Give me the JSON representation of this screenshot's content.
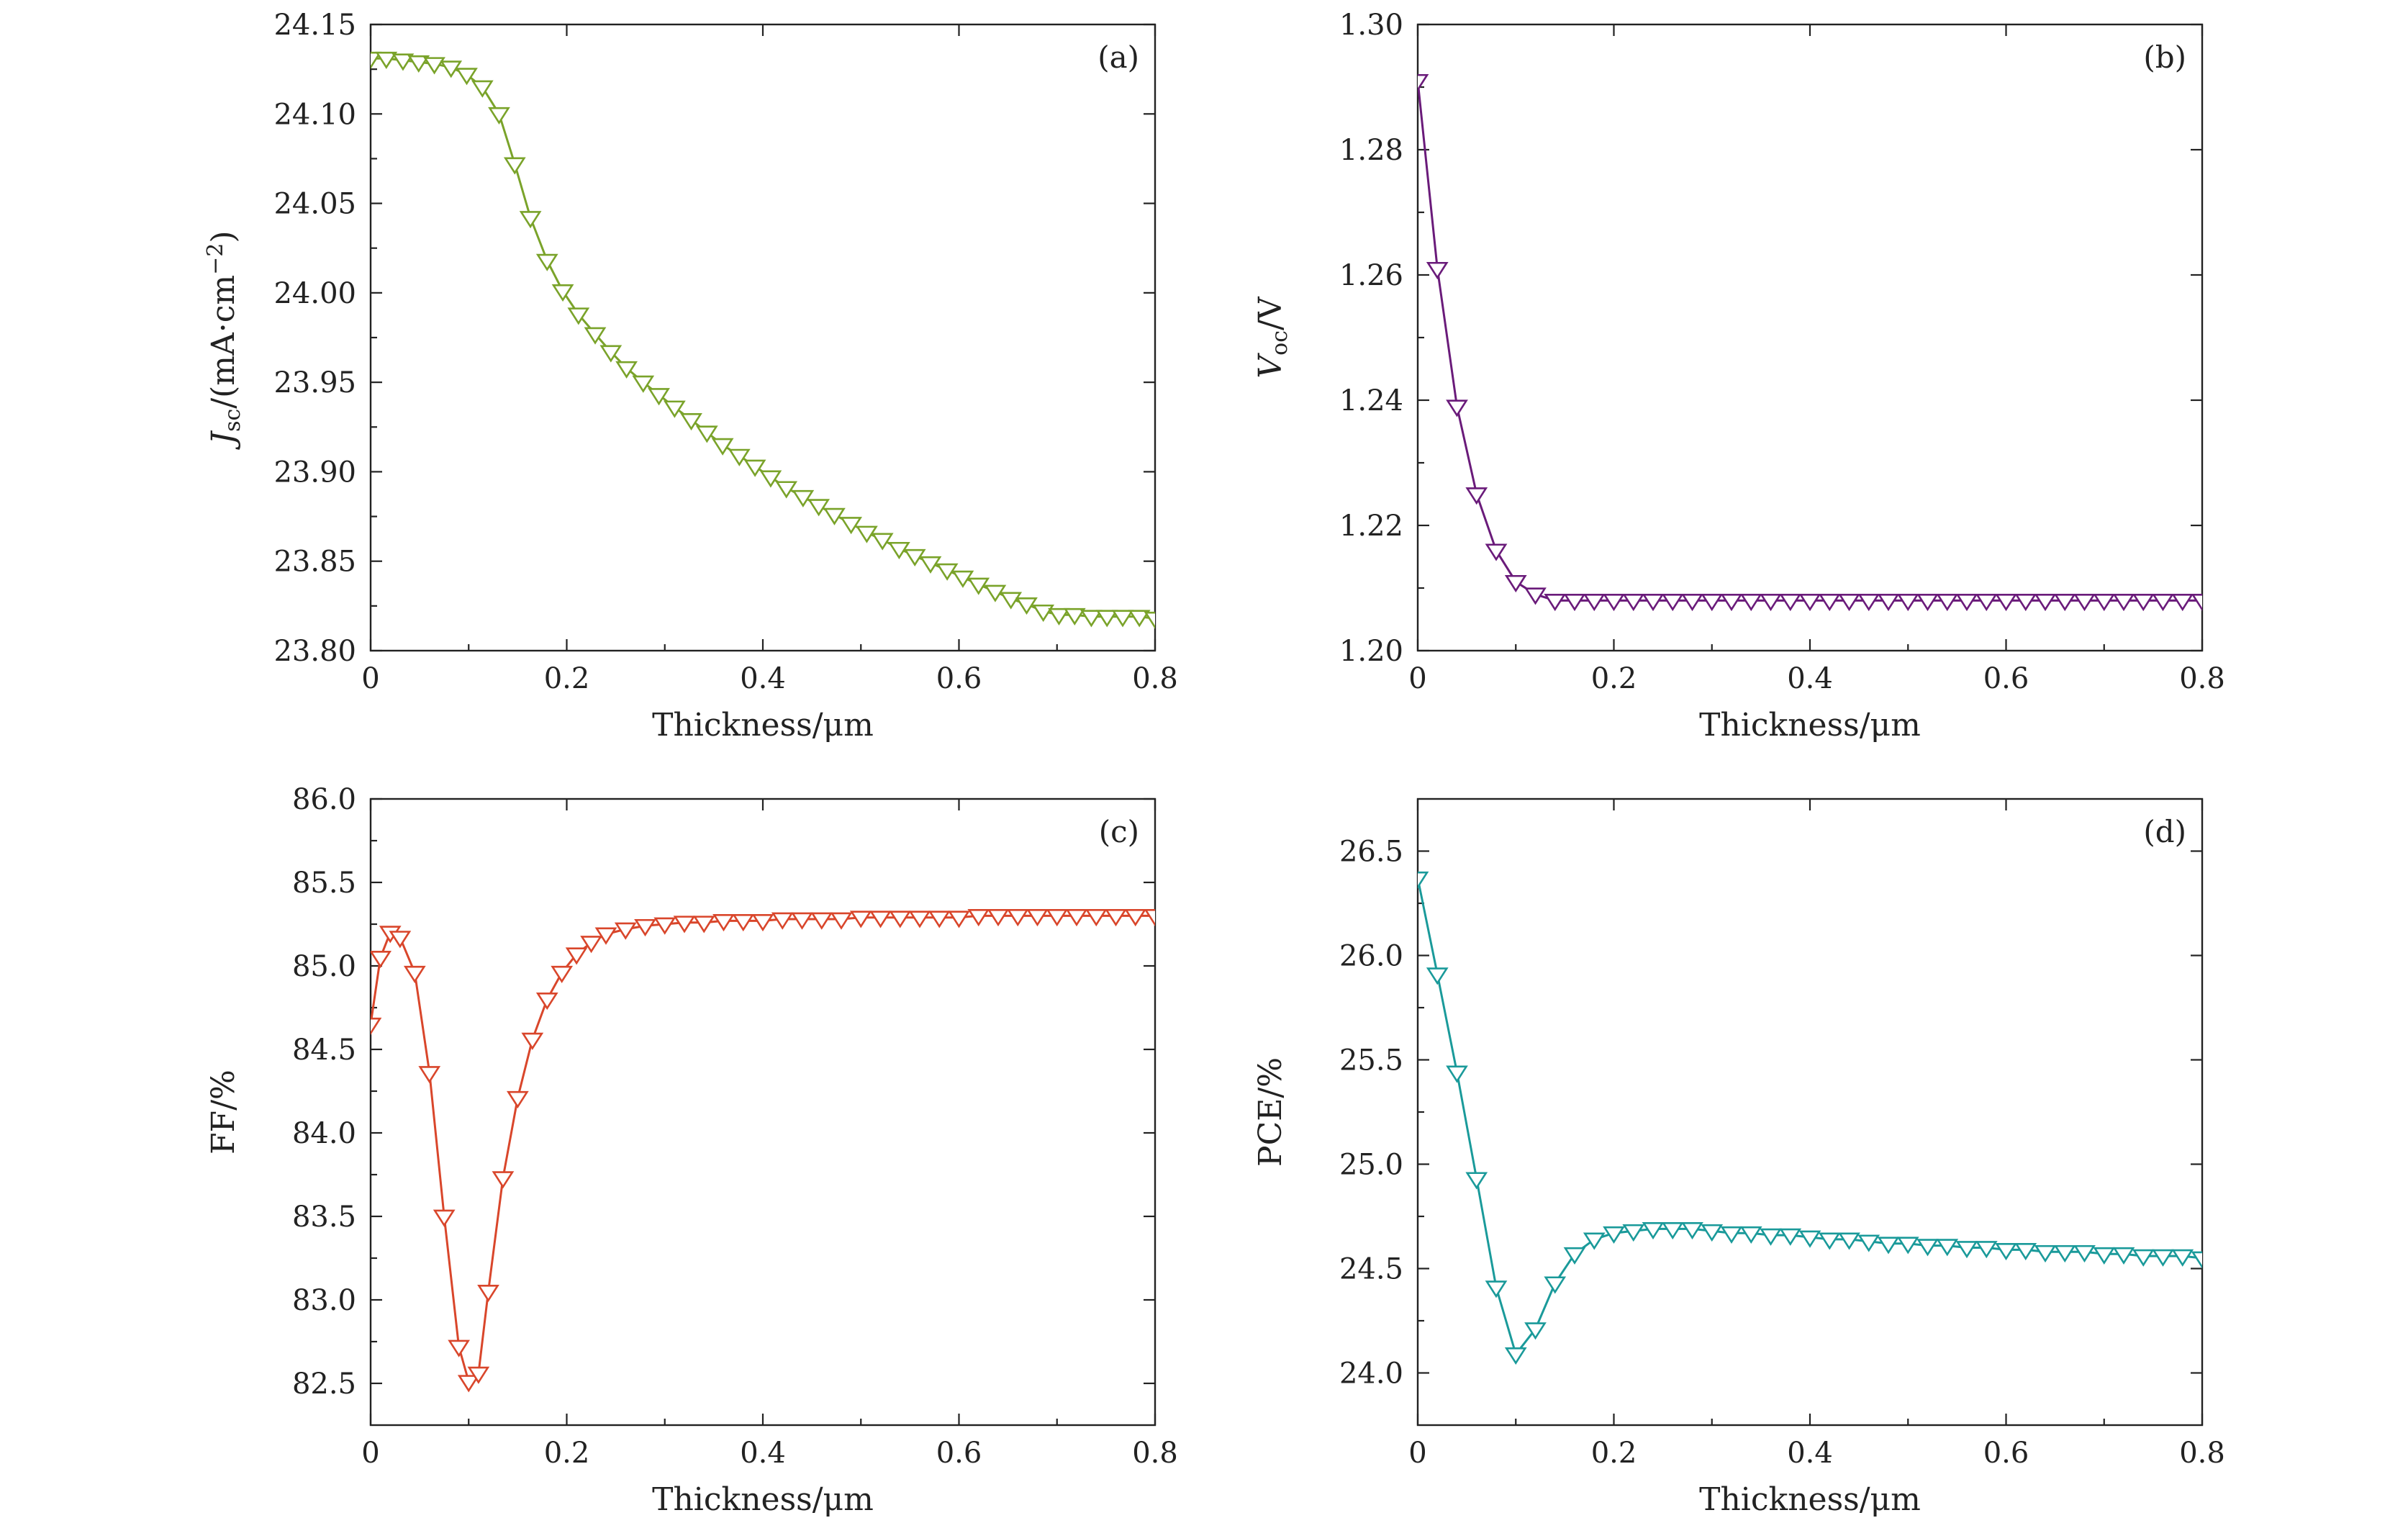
{
  "chart_data": [
    {
      "type": "line",
      "panel_label": "(a)",
      "xlabel": "Thickness/μm",
      "ylabel": {
        "main": "J",
        "sub": "sc",
        "rest": "/(mA·cm",
        "sup": "−2",
        "close": ")"
      },
      "xlim": [
        0,
        0.8
      ],
      "ylim": [
        23.8,
        24.15
      ],
      "xticks": [
        "0",
        "0.2",
        "0.4",
        "0.6",
        "0.8"
      ],
      "yticks": [
        "23.80",
        "23.85",
        "23.90",
        "23.95",
        "24.00",
        "24.05",
        "24.10",
        "24.15"
      ],
      "grid": false,
      "color": "#7aa32a",
      "marker": "triangle-down-open",
      "x": [
        0.0,
        0.016,
        0.033,
        0.049,
        0.065,
        0.082,
        0.098,
        0.114,
        0.131,
        0.147,
        0.163,
        0.18,
        0.196,
        0.212,
        0.229,
        0.245,
        0.261,
        0.278,
        0.294,
        0.31,
        0.327,
        0.343,
        0.359,
        0.376,
        0.392,
        0.408,
        0.424,
        0.441,
        0.457,
        0.473,
        0.49,
        0.506,
        0.522,
        0.539,
        0.555,
        0.571,
        0.588,
        0.604,
        0.62,
        0.637,
        0.653,
        0.669,
        0.686,
        0.702,
        0.718,
        0.735,
        0.751,
        0.767,
        0.784,
        0.8
      ],
      "y": [
        24.131,
        24.131,
        24.13,
        24.129,
        24.128,
        24.126,
        24.122,
        24.115,
        24.1,
        24.072,
        24.042,
        24.018,
        24.001,
        23.988,
        23.977,
        23.967,
        23.958,
        23.95,
        23.943,
        23.936,
        23.929,
        23.922,
        23.915,
        23.909,
        23.903,
        23.897,
        23.891,
        23.886,
        23.881,
        23.876,
        23.871,
        23.866,
        23.862,
        23.857,
        23.853,
        23.849,
        23.845,
        23.841,
        23.837,
        23.833,
        23.829,
        23.826,
        23.822,
        23.82,
        23.82,
        23.819,
        23.819,
        23.819,
        23.819,
        23.818
      ]
    },
    {
      "type": "line",
      "panel_label": "(b)",
      "xlabel": "Thickness/μm",
      "ylabel": {
        "main": "V",
        "sub": "oc",
        "rest": "/V",
        "sup": "",
        "close": ""
      },
      "xlim": [
        0,
        0.8
      ],
      "ylim": [
        1.2,
        1.3
      ],
      "xticks": [
        "0",
        "0.2",
        "0.4",
        "0.6",
        "0.8"
      ],
      "yticks": [
        "1.20",
        "1.22",
        "1.24",
        "1.26",
        "1.28",
        "1.30"
      ],
      "grid": false,
      "color": "#6a1b7a",
      "marker": "triangle-down-open",
      "x": [
        0.0,
        0.02,
        0.04,
        0.06,
        0.08,
        0.1,
        0.12,
        0.14,
        0.16,
        0.18,
        0.2,
        0.22,
        0.24,
        0.26,
        0.28,
        0.3,
        0.32,
        0.34,
        0.36,
        0.38,
        0.4,
        0.42,
        0.44,
        0.46,
        0.48,
        0.5,
        0.52,
        0.54,
        0.56,
        0.58,
        0.6,
        0.62,
        0.64,
        0.66,
        0.68,
        0.7,
        0.72,
        0.74,
        0.76,
        0.78,
        0.8
      ],
      "y": [
        1.291,
        1.261,
        1.239,
        1.225,
        1.216,
        1.211,
        1.209,
        1.208,
        1.208,
        1.208,
        1.208,
        1.208,
        1.208,
        1.208,
        1.208,
        1.208,
        1.208,
        1.208,
        1.208,
        1.208,
        1.208,
        1.208,
        1.208,
        1.208,
        1.208,
        1.208,
        1.208,
        1.208,
        1.208,
        1.208,
        1.208,
        1.208,
        1.208,
        1.208,
        1.208,
        1.208,
        1.208,
        1.208,
        1.208,
        1.208,
        1.208
      ]
    },
    {
      "type": "line",
      "panel_label": "(c)",
      "xlabel": "Thickness/μm",
      "ylabel": {
        "main": "FF/%",
        "sub": "",
        "rest": "",
        "sup": "",
        "close": ""
      },
      "xlim": [
        0,
        0.8
      ],
      "ylim": [
        82.25,
        86.0
      ],
      "xticks": [
        "0",
        "0.2",
        "0.4",
        "0.6",
        "0.8"
      ],
      "yticks": [
        "82.5",
        "83.0",
        "83.5",
        "84.0",
        "84.5",
        "85.0",
        "85.5",
        "86.0"
      ],
      "grid": false,
      "color": "#d9462b",
      "marker": "triangle-down-open",
      "x": [
        0.0,
        0.01,
        0.02,
        0.03,
        0.045,
        0.06,
        0.075,
        0.09,
        0.1,
        0.11,
        0.12,
        0.135,
        0.15,
        0.165,
        0.18,
        0.195,
        0.21,
        0.225,
        0.24,
        0.26,
        0.28,
        0.3,
        0.32,
        0.34,
        0.36,
        0.38,
        0.4,
        0.42,
        0.44,
        0.46,
        0.48,
        0.5,
        0.52,
        0.54,
        0.56,
        0.58,
        0.6,
        0.62,
        0.64,
        0.66,
        0.68,
        0.7,
        0.72,
        0.74,
        0.76,
        0.78,
        0.8
      ],
      "y": [
        84.65,
        85.05,
        85.2,
        85.17,
        84.96,
        84.36,
        83.5,
        82.72,
        82.51,
        82.56,
        83.05,
        83.73,
        84.21,
        84.56,
        84.8,
        84.96,
        85.07,
        85.14,
        85.19,
        85.22,
        85.24,
        85.25,
        85.26,
        85.26,
        85.27,
        85.27,
        85.27,
        85.28,
        85.28,
        85.28,
        85.28,
        85.29,
        85.29,
        85.29,
        85.29,
        85.29,
        85.29,
        85.3,
        85.3,
        85.3,
        85.3,
        85.3,
        85.3,
        85.3,
        85.3,
        85.3,
        85.3
      ]
    },
    {
      "type": "line",
      "panel_label": "(d)",
      "xlabel": "Thickness/μm",
      "ylabel": {
        "main": "PCE/%",
        "sub": "",
        "rest": "",
        "sup": "",
        "close": ""
      },
      "xlim": [
        0,
        0.8
      ],
      "ylim": [
        23.75,
        26.75
      ],
      "xticks": [
        "0",
        "0.2",
        "0.4",
        "0.6",
        "0.8"
      ],
      "yticks": [
        "24.0",
        "24.5",
        "25.0",
        "25.5",
        "26.0",
        "26.5"
      ],
      "grid": false,
      "color": "#1a9a9a",
      "marker": "triangle-down-open",
      "x": [
        0.0,
        0.02,
        0.04,
        0.06,
        0.08,
        0.1,
        0.12,
        0.14,
        0.16,
        0.18,
        0.2,
        0.22,
        0.24,
        0.26,
        0.28,
        0.3,
        0.32,
        0.34,
        0.36,
        0.38,
        0.4,
        0.42,
        0.44,
        0.46,
        0.48,
        0.5,
        0.52,
        0.54,
        0.56,
        0.58,
        0.6,
        0.62,
        0.64,
        0.66,
        0.68,
        0.7,
        0.72,
        0.74,
        0.76,
        0.78,
        0.8
      ],
      "y": [
        26.37,
        25.91,
        25.44,
        24.93,
        24.41,
        24.09,
        24.21,
        24.43,
        24.57,
        24.64,
        24.67,
        24.68,
        24.69,
        24.69,
        24.69,
        24.68,
        24.67,
        24.67,
        24.66,
        24.66,
        24.65,
        24.64,
        24.64,
        24.63,
        24.62,
        24.62,
        24.61,
        24.61,
        24.6,
        24.6,
        24.59,
        24.59,
        24.58,
        24.58,
        24.58,
        24.57,
        24.57,
        24.56,
        24.56,
        24.56,
        24.55
      ]
    }
  ]
}
